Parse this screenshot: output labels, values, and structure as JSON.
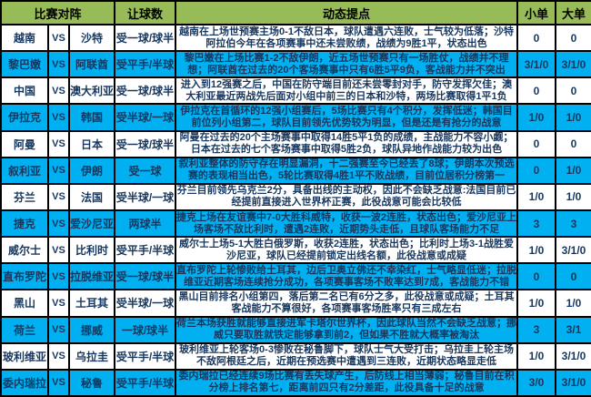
{
  "colors": {
    "header_bg": "#97BB56",
    "alt_row_bg": "#00B0F0",
    "text_color": "#17375E",
    "border_color": "#000000"
  },
  "table": {
    "vs_label": "VS",
    "headers": {
      "match": "比赛对阵",
      "handicap": "让球数",
      "tips": "动态提点",
      "small": "小单",
      "big": "大单"
    },
    "rows": [
      {
        "home": "越南",
        "away": "沙特",
        "handicap": "受一球/球半",
        "tip": "越南在上场世预赛主场0-1不敌日本，球队遭遇六连败，士气较为低落；沙特阿拉伯今年在各项赛事中还未尝败绩，战绩为9胜1平，状态出色",
        "small": "0",
        "big": "0"
      },
      {
        "home": "黎巴嫩",
        "away": "阿联酋",
        "handicap": "受平手/半球",
        "tip": "黎巴嫩在上场比赛1-2不敌伊朗，近五场世预赛只有一场胜仗，战绩并不理想；阿联酋在过去的20个客场赛事中只有6胜5平9负，客战能力并不突出",
        "small": "3/1/0",
        "big": "3/1/0"
      },
      {
        "home": "中国",
        "away": "澳大利亚",
        "handicap": "受一球/球半",
        "tip": "进入到12强赛之后，中国在防守端目前还未尝零封对手，防守发挥欠佳；澳大利亚最近两战先后面对小组中前三的日本和沙特，两场比赛取得1平1负",
        "small": "0",
        "big": "0"
      },
      {
        "home": "伊拉克",
        "away": "韩国",
        "handicap": "受半球/一球",
        "tip": "伊拉克在首循环的12强小组赛后，5场比赛只有4个积分，发挥低迷；韩国目前位列小组第二，球队目前领先优势较为明显，但是还是有抢分的战意",
        "small": "1/0",
        "big": "1/0"
      },
      {
        "home": "阿曼",
        "away": "日本",
        "handicap": "受一球/球半",
        "tip": "阿曼在过去的20个主场赛事中取得14胜5平1负的成绩，主战能力不容小觑；日本在过去的七个客场赛事中取得5胜2负，球队异地作战能力较为出色",
        "small": "0",
        "big": "0"
      },
      {
        "home": "叙利亚",
        "away": "伊朗",
        "handicap": "受一球",
        "tip": "叙利亚整体的防守存在明显漏洞，十二强赛至今已经丢了8球；伊朗本次预选赛的表现相当出色，5轮比赛取得4胜1平不败战绩，目前位居积分榜第一",
        "small": "0",
        "big": "1/0"
      },
      {
        "home": "芬兰",
        "away": "法国",
        "handicap": "受半球/一球",
        "tip": "芬兰目前领先乌克兰2分，具备出线的主动权，因此不会缺乏战意:法国目前已经提前直接进入世界杯正赛，此役战意可能会比较低",
        "small": "1/0",
        "big": "1/0"
      },
      {
        "home": "捷克",
        "away": "爱沙尼亚",
        "handicap": "两球半",
        "tip": "捷克上场在友谊赛中7-0大胜科威特，收获一波2连胜，状态出色；爱沙尼亚上场客场不敌比利时，遭遇2连败，近期势头走低，且球队客场能力不足",
        "small": "3",
        "big": "3"
      },
      {
        "home": "威尔士",
        "away": "比利时",
        "handicap": "受平手/半球",
        "tip": "威尔士上场5-1大胜白俄罗斯，收获2连胜，状态出色；比利时上场3-1战胜爱沙尼亚，球队已经提前锁定出线名额，此役战意或成疑",
        "small": "1/0",
        "big": "3/1/0"
      },
      {
        "home": "直布罗陀",
        "away": "拉脱维亚",
        "handicap": "受一球/球半",
        "tip": "直布罗陀上轮惨败给土耳其，边后卫奥立佛还不幸染红，士气略显低迷；拉脱维亚近期客场连续抢分成功，各项赛事客场不败率达到7成，客战能力不错",
        "small": "0",
        "big": "0"
      },
      {
        "home": "黑山",
        "away": "土耳其",
        "handicap": "受半球/一球",
        "tip": "黑山目前排名小组第四，落后第二名已有6分之多，此役战意或成疑；土耳其客战能力不算很好，各项赛事客场胜率只有三成左右",
        "small": "1/0",
        "big": "1/0"
      },
      {
        "home": "荷兰",
        "away": "挪威",
        "handicap": "一球/球半",
        "tip": "荷兰本场获胜就能够直接进军卡塔尔世界杯，因此球队当然不会缺乏战意；挪威只要取胜就铁定能够拿到前2，但如果不胜就大概率被淘汰",
        "small": "3",
        "big": "3/1"
      },
      {
        "home": "玻利维亚",
        "away": "乌拉圭",
        "handicap": "受平手/半球",
        "tip": "玻利维亚上轮客场0-3惨败在秘鲁脚下，球队士气大受打击；乌拉圭上轮主场不敌阿根廷之后，近期在预选赛中遭遇到三连败，近期状态略显走低",
        "small": "1/0",
        "big": "3/1/0"
      },
      {
        "home": "委内瑞拉",
        "away": "秘鲁",
        "handicap": "受平手/半球",
        "tip": "委内瑞拉已经连续9场比赛有丢失球产生，后防线上相当薄弱；秘鲁目前在积分榜上排名第七，距离前四只有2分差距，此役具备十足的战意",
        "small": "3/0",
        "big": "3/1/0"
      }
    ]
  }
}
